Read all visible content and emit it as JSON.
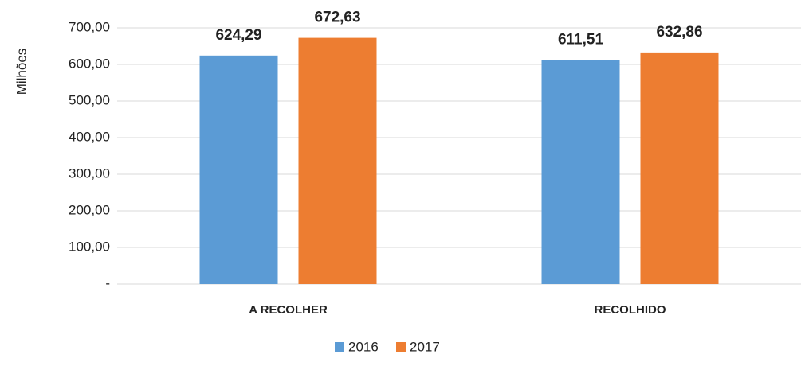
{
  "chart_data": {
    "type": "bar",
    "y_label": "Milhões",
    "categories": [
      "A RECOLHER",
      "RECOLHIDO"
    ],
    "series": [
      {
        "name": "2016",
        "color": "#5b9bd5",
        "values": [
          624.29,
          611.51
        ],
        "value_labels": [
          "624,29",
          "611,51"
        ]
      },
      {
        "name": "2017",
        "color": "#ed7d31",
        "values": [
          672.63,
          632.86
        ],
        "value_labels": [
          "672,63",
          "632,86"
        ]
      }
    ],
    "ylim": [
      0,
      700
    ],
    "yticks": [
      {
        "value": 0,
        "label": "-"
      },
      {
        "value": 100,
        "label": "100,00"
      },
      {
        "value": 200,
        "label": "200,00"
      },
      {
        "value": 300,
        "label": "300,00"
      },
      {
        "value": 400,
        "label": "400,00"
      },
      {
        "value": 500,
        "label": "500,00"
      },
      {
        "value": 600,
        "label": "600,00"
      },
      {
        "value": 700,
        "label": "700,00"
      }
    ],
    "grid": true,
    "legend": "bottom"
  }
}
